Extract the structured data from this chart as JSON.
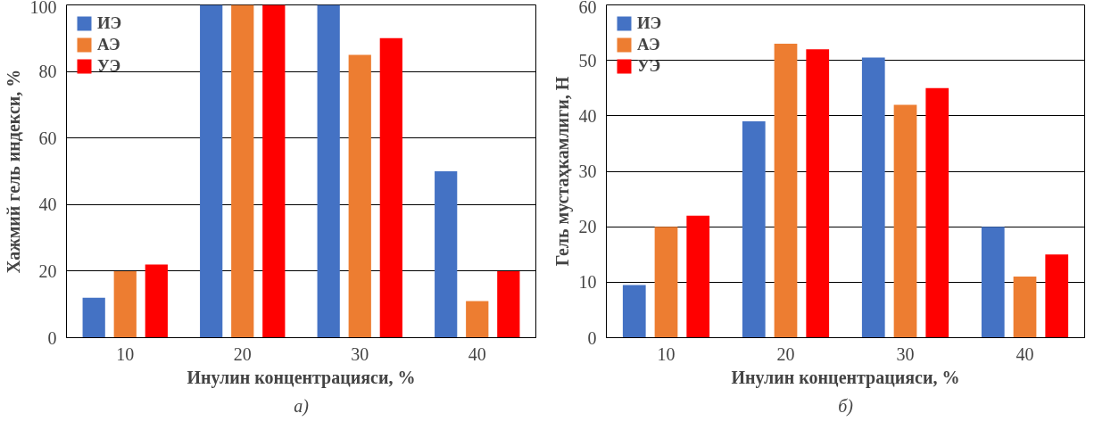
{
  "chart_data": [
    {
      "type": "bar",
      "xlabel": "Инулин концентрацияси, %",
      "ylabel": "Хажмий гель индекси, %",
      "categories": [
        "10",
        "20",
        "30",
        "40"
      ],
      "series": [
        {
          "name": "ИЭ",
          "color": "#4472c4",
          "values": [
            12,
            100,
            100,
            50
          ]
        },
        {
          "name": "АЭ",
          "color": "#ed7d31",
          "values": [
            20,
            100,
            85,
            11
          ]
        },
        {
          "name": "УЭ",
          "color": "#ff0000",
          "values": [
            22,
            100,
            90,
            20
          ]
        }
      ],
      "ylim": [
        0,
        100
      ],
      "yticks": [
        0,
        20,
        40,
        60,
        80,
        100
      ],
      "grid": "y",
      "legend": "top left",
      "annotations": [
        "а)"
      ]
    },
    {
      "type": "bar",
      "xlabel": "Инулин концентрацияси, %",
      "ylabel": "Гель мустаҳкамлиги, Н",
      "categories": [
        "10",
        "20",
        "30",
        "40"
      ],
      "series": [
        {
          "name": "ИЭ",
          "color": "#4472c4",
          "values": [
            9.5,
            39,
            50.5,
            20
          ]
        },
        {
          "name": "АЭ",
          "color": "#ed7d31",
          "values": [
            20,
            53,
            42,
            11
          ]
        },
        {
          "name": "УЭ",
          "color": "#ff0000",
          "values": [
            22,
            52,
            45,
            15
          ]
        }
      ],
      "ylim": [
        0,
        60
      ],
      "yticks": [
        0,
        10,
        20,
        30,
        40,
        50,
        60
      ],
      "grid": "y",
      "legend": "top left",
      "annotations": [
        "б)"
      ]
    }
  ]
}
